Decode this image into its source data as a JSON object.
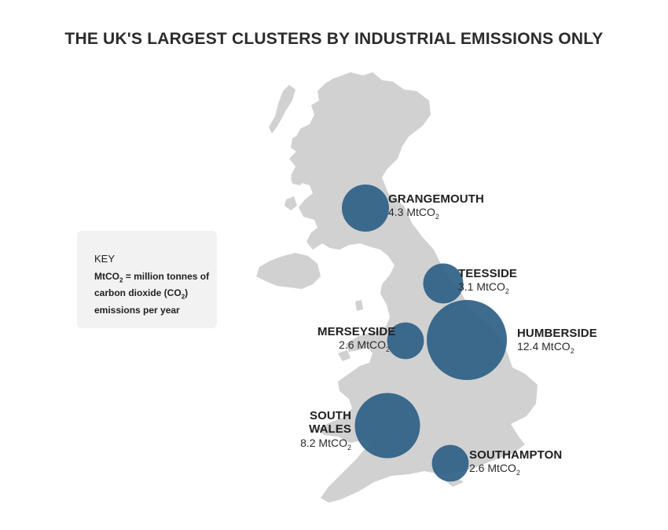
{
  "title": "THE UK'S LARGEST CLUSTERS BY INDUSTRIAL EMISSIONS ONLY",
  "key": {
    "heading": "KEY",
    "term": "MtCO",
    "sub": "2",
    "definition_a": " = million tonnes of carbon dioxide (CO",
    "definition_b": ") emissions per year"
  },
  "unit": {
    "prefix": "MtCO",
    "sub": "2"
  },
  "colors": {
    "land": "#d1d1d1",
    "bubble": "#2d5f85",
    "bubble_dark": "#244d6e"
  },
  "clusters": [
    {
      "name": "GRANGEMOUTH",
      "value": 4.3,
      "value_text": "4.3"
    },
    {
      "name": "TEESSIDE",
      "value": 3.1,
      "value_text": "3.1"
    },
    {
      "name": "MERSEYSIDE",
      "value": 2.6,
      "value_text": "2.6"
    },
    {
      "name": "HUMBERSIDE",
      "value": 12.4,
      "value_text": "12.4"
    },
    {
      "name": "SOUTH WALES",
      "value": 8.2,
      "value_text": "8.2"
    },
    {
      "name": "SOUTHAMPTON",
      "value": 2.6,
      "value_text": "2.6"
    }
  ]
}
